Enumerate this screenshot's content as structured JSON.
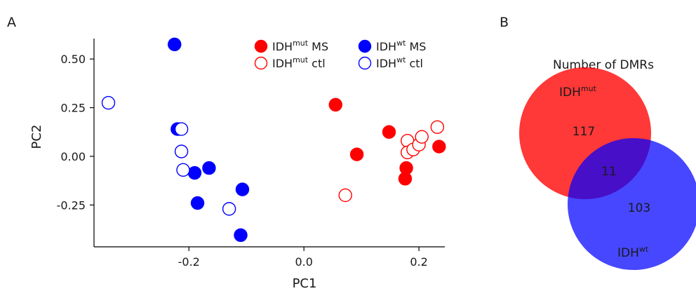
{
  "panel_a_label": "A",
  "panel_b_label": "B",
  "chart_data": [
    {
      "type": "scatter",
      "title": "",
      "xlabel": "PC1",
      "ylabel": "PC2",
      "xlim": [
        -0.365,
        0.245
      ],
      "ylim": [
        -0.465,
        0.605
      ],
      "xticks": [
        -0.2,
        0.0,
        0.2
      ],
      "xtick_labels": [
        "-0.2",
        "0.0",
        "0.2"
      ],
      "yticks": [
        -0.25,
        0.0,
        0.25,
        0.5
      ],
      "ytick_labels": [
        "-0.25",
        "0.00",
        "0.25",
        "0.50"
      ],
      "legend_position": "top",
      "series": [
        {
          "name": "IDH mut MS",
          "label_base": "IDH",
          "label_sup": "mut",
          "label_suffix": " MS",
          "color": "#ff0000",
          "filled": true,
          "points": [
            [
              0.055,
              0.265
            ],
            [
              0.092,
              0.01
            ],
            [
              0.148,
              0.125
            ],
            [
              0.178,
              -0.06
            ],
            [
              0.176,
              -0.115
            ],
            [
              0.235,
              0.05
            ]
          ]
        },
        {
          "name": "IDH wt MS",
          "label_base": "IDH",
          "label_sup": "wt",
          "label_suffix": " MS",
          "color": "#0000ff",
          "filled": true,
          "points": [
            [
              -0.225,
              0.575
            ],
            [
              -0.22,
              0.14
            ],
            [
              -0.19,
              -0.085
            ],
            [
              -0.165,
              -0.06
            ],
            [
              -0.185,
              -0.24
            ],
            [
              -0.107,
              -0.17
            ],
            [
              -0.11,
              -0.405
            ]
          ]
        },
        {
          "name": "IDH mut ctl",
          "label_base": "IDH",
          "label_sup": "mut",
          "label_suffix": " ctl",
          "color": "#ff0000",
          "filled": false,
          "points": [
            [
              0.072,
              -0.2
            ],
            [
              0.18,
              0.08
            ],
            [
              0.18,
              0.02
            ],
            [
              0.19,
              0.035
            ],
            [
              0.2,
              0.06
            ],
            [
              0.205,
              0.1
            ],
            [
              0.232,
              0.15
            ]
          ]
        },
        {
          "name": "IDH wt ctl",
          "label_base": "IDH",
          "label_sup": "wt",
          "label_suffix": " ctl",
          "color": "#0000ff",
          "filled": false,
          "points": [
            [
              -0.34,
              0.275
            ],
            [
              -0.213,
              0.14
            ],
            [
              -0.213,
              0.025
            ],
            [
              -0.21,
              -0.07
            ],
            [
              -0.13,
              -0.27
            ]
          ]
        }
      ]
    },
    {
      "type": "venn",
      "title": "Number of DMRs",
      "sets": [
        {
          "label_base": "IDH",
          "label_sup": "mut",
          "color": "#ff0000",
          "only_count": "117"
        },
        {
          "label_base": "IDH",
          "label_sup": "wt",
          "color": "#0000ff",
          "only_count": "103"
        }
      ],
      "intersection_count": "11"
    }
  ]
}
